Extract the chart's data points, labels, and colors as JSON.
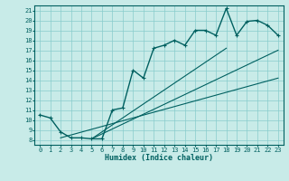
{
  "xlabel": "Humidex (Indice chaleur)",
  "bg_color": "#c8ebe8",
  "line_color": "#006060",
  "grid_color": "#88cccc",
  "xmin": -0.5,
  "xmax": 23.5,
  "ymin": 7.5,
  "ymax": 21.5,
  "hours": [
    0,
    1,
    2,
    3,
    4,
    5,
    6,
    7,
    8,
    9,
    10,
    11,
    12,
    13,
    14,
    15,
    16,
    17,
    18,
    19,
    20,
    21,
    22,
    23
  ],
  "humidex": [
    10.5,
    10.2,
    8.8,
    8.2,
    8.2,
    8.1,
    8.1,
    11.0,
    11.2,
    15.0,
    14.2,
    17.2,
    17.5,
    18.0,
    17.5,
    19.0,
    19.0,
    18.5,
    21.2,
    18.5,
    19.9,
    20.0,
    19.5,
    18.5
  ],
  "xticks": [
    0,
    1,
    2,
    3,
    4,
    5,
    6,
    7,
    8,
    9,
    10,
    11,
    12,
    13,
    14,
    15,
    16,
    17,
    18,
    19,
    20,
    21,
    22,
    23
  ],
  "yticks": [
    8,
    9,
    10,
    11,
    12,
    13,
    14,
    15,
    16,
    17,
    18,
    19,
    20,
    21
  ],
  "trend_lines": [
    {
      "x": [
        2,
        23
      ],
      "y": [
        8.2,
        14.2
      ]
    },
    {
      "x": [
        5,
        23
      ],
      "y": [
        8.1,
        17.0
      ]
    },
    {
      "x": [
        5,
        18
      ],
      "y": [
        8.1,
        17.2
      ]
    }
  ]
}
